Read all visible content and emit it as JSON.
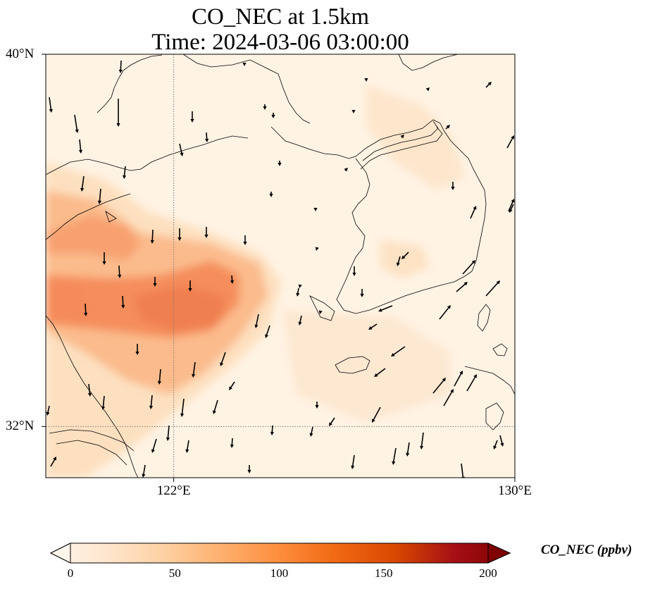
{
  "title": {
    "line1": "CO_NEC at 1.5km",
    "line2": "Time: 2024-03-06 03:00:00"
  },
  "map": {
    "lon_range": [
      119,
      130
    ],
    "lat_range": [
      30.9,
      40
    ],
    "gridlines": {
      "lons": [
        122
      ],
      "lats": [
        32
      ]
    },
    "x_ticks": [
      {
        "value": 122,
        "label": "122°E"
      },
      {
        "value": 130,
        "label": "130°E"
      }
    ],
    "y_ticks": [
      {
        "value": 40,
        "label": "40°N"
      },
      {
        "value": 32,
        "label": "32°N"
      }
    ],
    "field_name": "CO_NEC",
    "field_peak_ppbv": 105,
    "colors": {
      "low": "#fff5eb",
      "mid": "#fdae6b",
      "high": "#e6550d",
      "max": "#7f0000",
      "coast": "#000000"
    }
  },
  "colorbar": {
    "label": "CO_NEC (ppbv)",
    "range": [
      0,
      200
    ],
    "ticks": [
      {
        "value": 0,
        "label": "0"
      },
      {
        "value": 50,
        "label": "50"
      },
      {
        "value": 100,
        "label": "100"
      },
      {
        "value": 150,
        "label": "150"
      },
      {
        "value": 200,
        "label": "200"
      }
    ],
    "extend": "both"
  }
}
